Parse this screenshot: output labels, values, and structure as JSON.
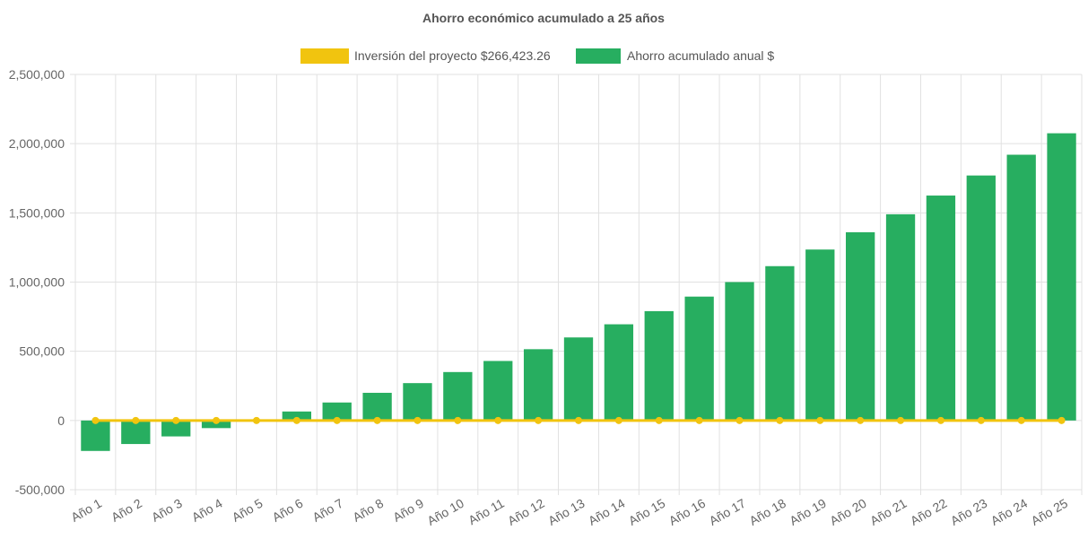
{
  "chart_data": {
    "type": "bar",
    "title": "Ahorro económico acumulado a 25 años",
    "xlabel": "",
    "ylabel": "",
    "ylim": [
      -500000,
      2500000
    ],
    "y_ticks": [
      "2,500,000",
      "2,000,000",
      "1,500,000",
      "1,000,000",
      "500,000",
      "0",
      "-500,000"
    ],
    "y_tick_values": [
      2500000,
      2000000,
      1500000,
      1000000,
      500000,
      0,
      -500000
    ],
    "grid": true,
    "legend_position": "top",
    "categories": [
      "Año 1",
      "Año 2",
      "Año 3",
      "Año 4",
      "Año 5",
      "Año 6",
      "Año 7",
      "Año 8",
      "Año 9",
      "Año 10",
      "Año 11",
      "Año 12",
      "Año 13",
      "Año 14",
      "Año 15",
      "Año 16",
      "Año 17",
      "Año 18",
      "Año 19",
      "Año 20",
      "Año 21",
      "Año 22",
      "Año 23",
      "Año 24",
      "Año 25"
    ],
    "series": [
      {
        "name": "Inversión del proyecto $266,423.26",
        "type": "line",
        "color": "#f1c40f",
        "values": [
          0,
          0,
          0,
          0,
          0,
          0,
          0,
          0,
          0,
          0,
          0,
          0,
          0,
          0,
          0,
          0,
          0,
          0,
          0,
          0,
          0,
          0,
          0,
          0,
          0
        ]
      },
      {
        "name": "Ahorro acumulado anual $",
        "type": "bar",
        "color": "#27ae60",
        "values": [
          -220000,
          -170000,
          -115000,
          -55000,
          0,
          65000,
          130000,
          200000,
          270000,
          350000,
          430000,
          515000,
          600000,
          695000,
          790000,
          895000,
          1000000,
          1115000,
          1235000,
          1360000,
          1490000,
          1625000,
          1770000,
          1920000,
          2075000
        ]
      }
    ]
  }
}
